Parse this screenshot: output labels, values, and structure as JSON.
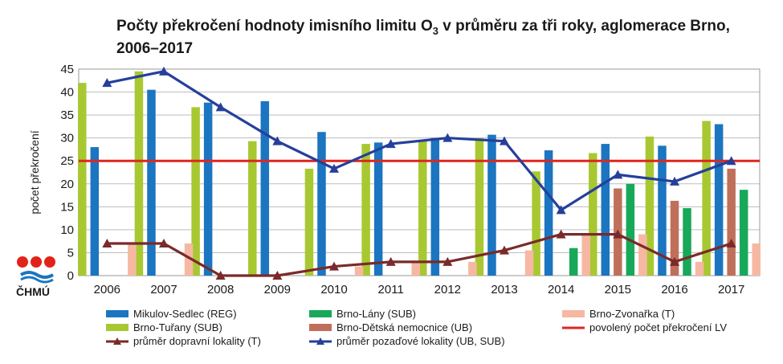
{
  "chart_data": {
    "type": "bar",
    "title_parts": {
      "line1_prefix": "Počty překročení hodnoty imisního limitu O",
      "line1_sub": "3",
      "line1_suffix": " v průměru za tři roky, aglomerace Brno,",
      "line2": "2006–2017"
    },
    "ylabel": "počet překročení",
    "ylim": [
      0,
      45
    ],
    "yticks": [
      0,
      5,
      10,
      15,
      20,
      25,
      30,
      35,
      40,
      45
    ],
    "grid": true,
    "categories": [
      "2006",
      "2007",
      "2008",
      "2009",
      "2010",
      "2011",
      "2012",
      "2013",
      "2014",
      "2015",
      "2016",
      "2017"
    ],
    "series": [
      {
        "name": "Brno-Tuřany (SUB)",
        "kind": "bar",
        "color": "#a8c832",
        "values": [
          42,
          44.5,
          36.7,
          29.3,
          23.3,
          28.7,
          29.3,
          30,
          22.7,
          26.7,
          30.3,
          33.7
        ]
      },
      {
        "name": "Mikulov-Sedlec (REG)",
        "kind": "bar",
        "color": "#1b75c0",
        "values": [
          28,
          40.5,
          37.7,
          38,
          31.3,
          29,
          30,
          30.7,
          27.3,
          28.7,
          28.3,
          33
        ]
      },
      {
        "name": "Brno-Dětská nemocnice (UB)",
        "kind": "bar",
        "color": "#c0705a",
        "values": [
          null,
          null,
          null,
          null,
          null,
          null,
          null,
          null,
          null,
          19,
          16.3,
          23.3
        ]
      },
      {
        "name": "Brno-Lány (SUB)",
        "kind": "bar",
        "color": "#18a85a",
        "values": [
          null,
          null,
          null,
          null,
          null,
          null,
          null,
          null,
          6,
          20,
          14.7,
          18.7
        ]
      },
      {
        "name": "Brno-Zvonařka (T)",
        "kind": "bar",
        "color": "#f6b8a2",
        "values": [
          7,
          7,
          0,
          0,
          2,
          3,
          3,
          5.5,
          9,
          9,
          3,
          7
        ]
      },
      {
        "name": "povolený počet překročení LV",
        "kind": "hline",
        "color": "#e0261f",
        "value": 25
      },
      {
        "name": "průměr dopravní lokality (T)",
        "kind": "line",
        "color": "#7a2a2a",
        "values": [
          7,
          7,
          0,
          0,
          2,
          3,
          3,
          5.5,
          9,
          9,
          3,
          7
        ]
      },
      {
        "name": "průměr pozaďové lokality (UB, SUB)",
        "kind": "line",
        "color": "#263f9a",
        "values": [
          42,
          44.5,
          36.7,
          29.3,
          23.3,
          28.7,
          30,
          29.3,
          14.3,
          22,
          20.5,
          25
        ]
      }
    ]
  },
  "logo": {
    "text": "ČHMÚ",
    "colors": [
      "#e2231a",
      "#e2231a",
      "#e2231a",
      "#1b75c0"
    ]
  },
  "legend_colors": {
    "line_hline": "#e0261f"
  }
}
